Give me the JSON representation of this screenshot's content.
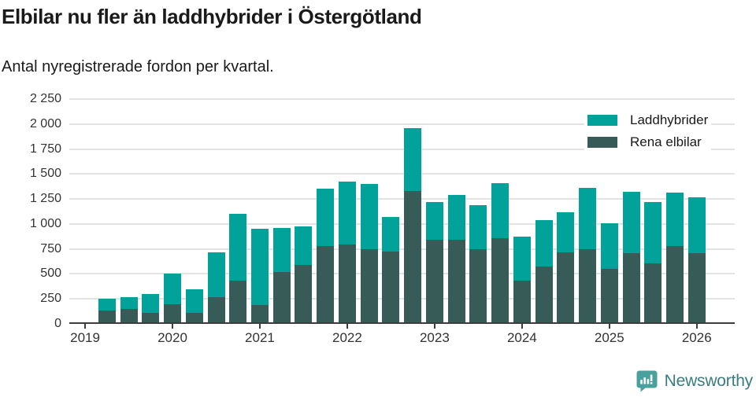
{
  "header": {
    "title": "Elbilar nu fler än laddhybrider i Östergötland",
    "subtitle": "Antal nyregistrerade fordon per kvartal."
  },
  "chart_data": {
    "type": "bar",
    "stacked": true,
    "title": "Elbilar nu fler än laddhybrider i Östergötland",
    "subtitle": "Antal nyregistrerade fordon per kvartal.",
    "categories": [
      "2019 Q2",
      "2019 Q3",
      "2019 Q4",
      "2020 Q1",
      "2020 Q2",
      "2020 Q3",
      "2020 Q4",
      "2021 Q1",
      "2021 Q2",
      "2021 Q3",
      "2021 Q4",
      "2022 Q1",
      "2022 Q2",
      "2022 Q3",
      "2022 Q4",
      "2023 Q1",
      "2023 Q2",
      "2023 Q3",
      "2023 Q4",
      "2024 Q1",
      "2024 Q2",
      "2024 Q3",
      "2024 Q4",
      "2025 Q1",
      "2025 Q2",
      "2025 Q3",
      "2025 Q4",
      "2026 Q1"
    ],
    "series": [
      {
        "name": "Laddhybrider",
        "color": "#00a29a",
        "stack_position": "top",
        "values": [
          118,
          117,
          185,
          308,
          233,
          444,
          670,
          766,
          442,
          382,
          576,
          630,
          654,
          351,
          628,
          381,
          446,
          441,
          547,
          441,
          466,
          399,
          613,
          457,
          613,
          617,
          539,
          565
        ]
      },
      {
        "name": "Rena elbilar",
        "color": "#375b56",
        "stack_position": "bottom",
        "values": [
          136,
          151,
          112,
          197,
          112,
          271,
          429,
          188,
          518,
          591,
          778,
          795,
          747,
          721,
          1328,
          841,
          845,
          747,
          860,
          434,
          573,
          718,
          749,
          550,
          710,
          605,
          776,
          705
        ]
      }
    ],
    "xlabel": "",
    "ylabel": "Antal nyregistrerade fordon",
    "ylim": [
      0,
      2250
    ],
    "y_ticks": {
      "values": [
        0,
        250,
        500,
        750,
        1000,
        1250,
        1500,
        1750,
        2000,
        2250
      ],
      "labels": [
        "0",
        "250",
        "500",
        "750",
        "1 000",
        "1 250",
        "1 500",
        "1 750",
        "2 000",
        "2 250"
      ]
    },
    "x_ticks": {
      "labels": [
        "2019",
        "2020",
        "2021",
        "2022",
        "2023",
        "2024",
        "2025",
        "2026"
      ],
      "first_bar_quarter_offset": 1
    },
    "grid": "horizontal",
    "legend_position": "top-right"
  },
  "footer": {
    "brand": "Newsworthy"
  }
}
